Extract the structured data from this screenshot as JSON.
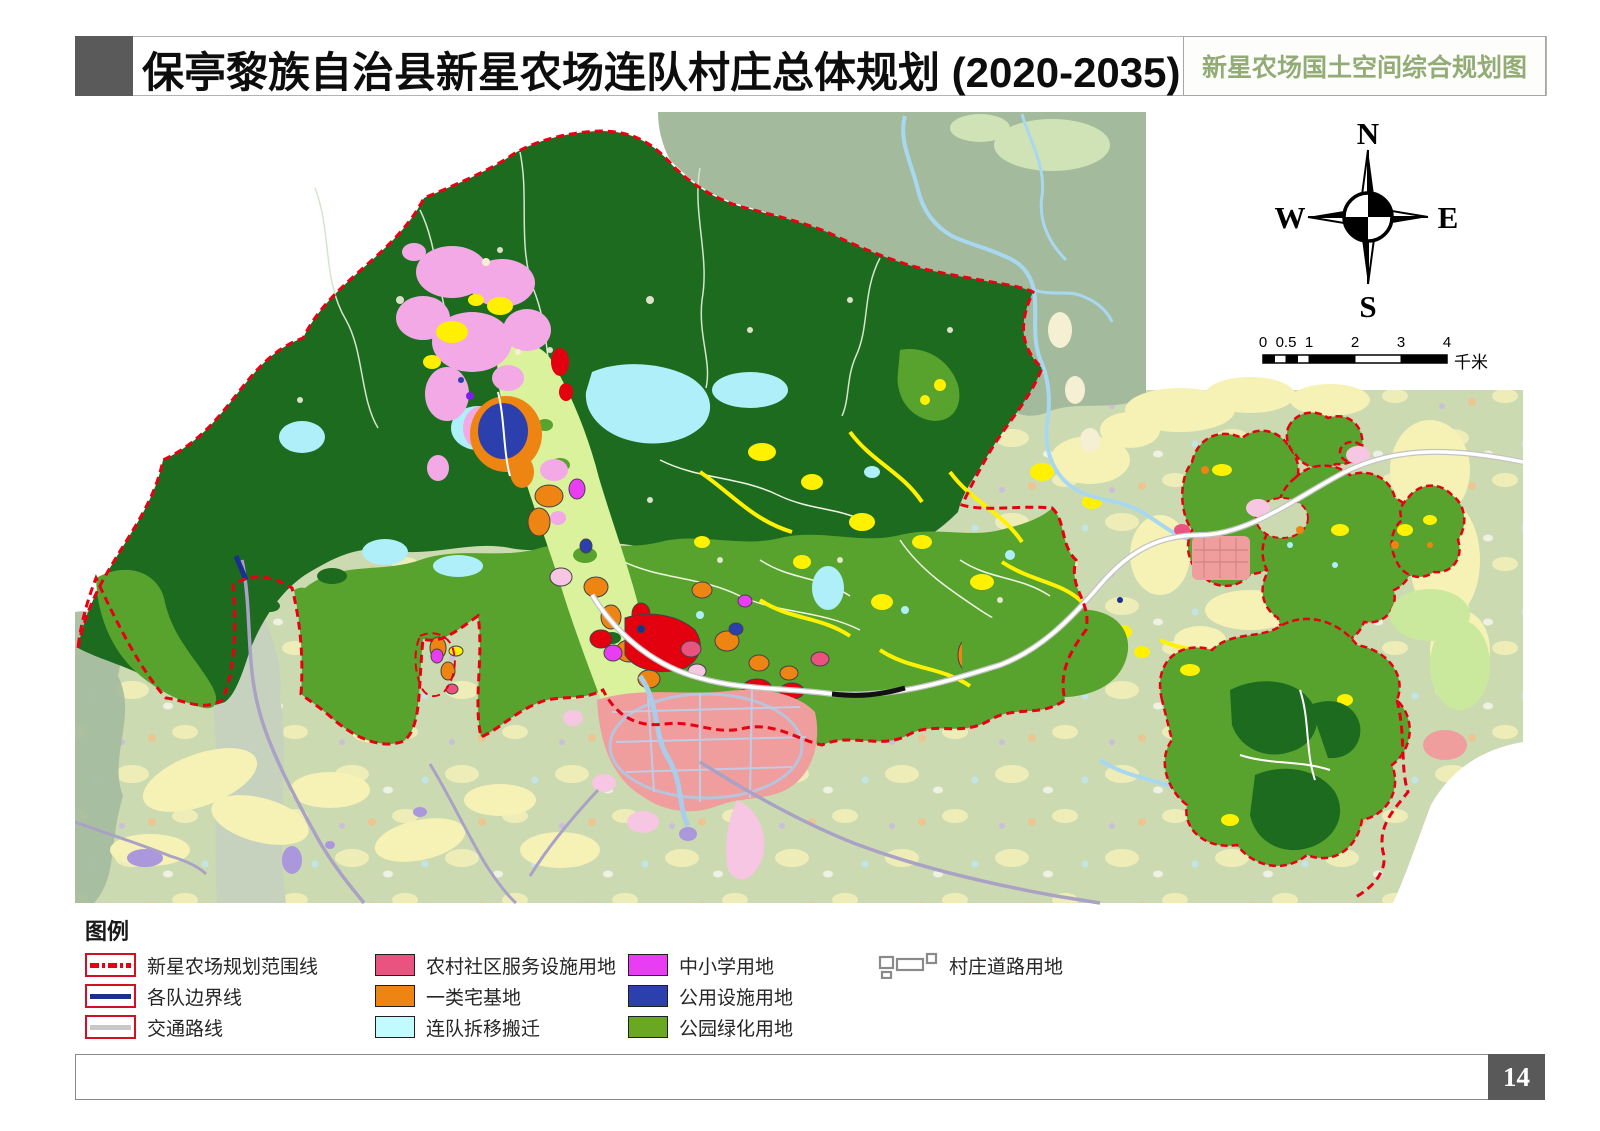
{
  "header": {
    "title": "保亭黎族自治县新星农场连队村庄总体规划 (2020-2035)",
    "corner_label": "新星农场国土空间综合规划图"
  },
  "compass": {
    "north": "N",
    "south": "S",
    "east": "E",
    "west": "W"
  },
  "scale_bar": {
    "ticks": [
      "0",
      "0.5",
      "1",
      "2",
      "3",
      "4"
    ],
    "unit": "千米"
  },
  "legend": {
    "title": "图例",
    "line_items": [
      {
        "label": "新星农场规划范围线",
        "kind": "dashed",
        "color": "#e60012"
      },
      {
        "label": "各队边界线",
        "kind": "solid",
        "color": "#1a2f8f"
      },
      {
        "label": "交通路线",
        "kind": "solid",
        "color": "#c8c8c8"
      }
    ],
    "area_items": [
      {
        "label": "农村社区服务设施用地",
        "color": "#ea5380"
      },
      {
        "label": "一类宅基地",
        "color": "#ee8412"
      },
      {
        "label": "连队拆移搬迁",
        "color": "#c2fbff"
      },
      {
        "label": "中小学用地",
        "color": "#e83df2"
      },
      {
        "label": "公用设施用地",
        "color": "#2b3fad"
      },
      {
        "label": "公园绿化用地",
        "color": "#6aa824"
      }
    ],
    "road_item": {
      "label": "村庄道路用地"
    }
  },
  "map_colors": {
    "planning_boundary": "#e60012",
    "forest_dark": "#1d6b1f",
    "forest_medium": "#57a32d",
    "farmland_base": "#ccdab2",
    "outside_area": "#a4ba9d",
    "water": "#aeeffa",
    "settlement_pink": "#f3a9e5",
    "town_salmon": "#ef9d9d"
  },
  "footer": {
    "page_number": "14"
  }
}
